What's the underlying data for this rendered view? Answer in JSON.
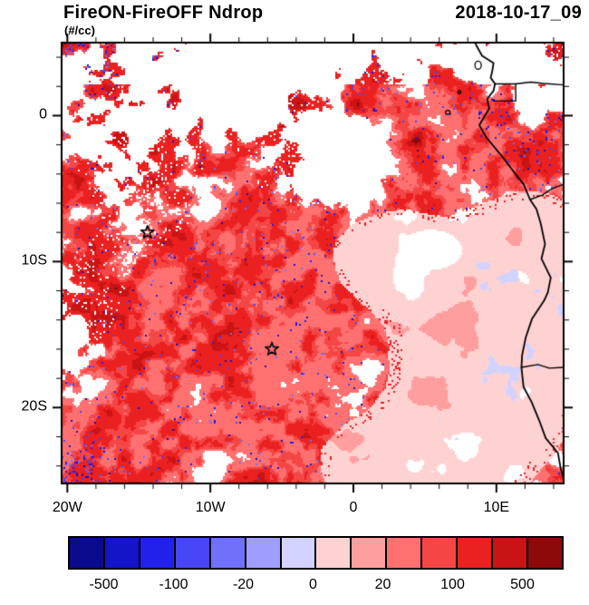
{
  "header": {
    "title_left": "FireON-FireOFF Ndrop",
    "units": "(#/cc)",
    "title_right": "2018-10-17_09"
  },
  "chart_data": {
    "type": "heatmap",
    "title": "FireON-FireOFF Ndrop",
    "units": "#/cc",
    "time_label": "2018-10-17_09",
    "projection": "cylindrical equidistant lat-lon map of the SE Atlantic / West African coast",
    "lon_range": [
      -20.4,
      14.7
    ],
    "lat_range": [
      -25.2,
      5.0
    ],
    "lon_ticks": [
      {
        "deg": -20,
        "label": "20W"
      },
      {
        "deg": -10,
        "label": "10W"
      },
      {
        "deg": 0,
        "label": "0"
      },
      {
        "deg": 10,
        "label": "10E"
      }
    ],
    "lat_ticks": [
      {
        "deg": 0,
        "label": "0"
      },
      {
        "deg": -10,
        "label": "10S"
      },
      {
        "deg": -20,
        "label": "20S"
      }
    ],
    "minor_tick_step_deg": 2,
    "grid": false,
    "legend_position": "bottom colorbar",
    "colorbar": {
      "levels": [
        -500,
        -200,
        -100,
        -50,
        -20,
        -10,
        0,
        10,
        20,
        50,
        100,
        200,
        500
      ],
      "colors": [
        "#0a0a8c",
        "#1414c8",
        "#2121eb",
        "#4646f5",
        "#7070fa",
        "#9e9eff",
        "#d2d2ff",
        "#ffd2d2",
        "#ff9e9e",
        "#ff7070",
        "#f54646",
        "#eb2121",
        "#c81414",
        "#8c0a0a"
      ],
      "tick_labels": [
        "-500",
        "-100",
        "-20",
        "0",
        "20",
        "100",
        "500"
      ],
      "labeled_boundary_indices": [
        1,
        3,
        5,
        7,
        9,
        11,
        13
      ]
    },
    "markers": [
      {
        "symbol": "open-star",
        "lon": -14.4,
        "lat": -8.0
      },
      {
        "symbol": "open-star",
        "lon": -5.7,
        "lat": -16.0
      }
    ],
    "field_description": "Predominantly positive (red, +20 to +500 #/cc) droplet-number differences speckled across the SE Atlantic with white near-zero gaps; a smooth weak-positive region (0 to +20, pale pink) with scattered pale-blue patches occupies the lower right near the Angola/Namibia coast; negative (blue) speckles concentrate along the northern edge, the western edge and the bottom-left corner."
  }
}
